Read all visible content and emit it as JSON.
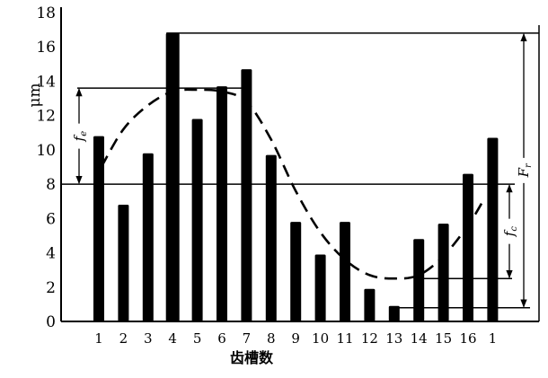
{
  "chart_data": {
    "type": "bar",
    "title": "",
    "xlabel": "齿槽数",
    "ylabel": "μm",
    "ylim": [
      0,
      18
    ],
    "yticks": [
      0,
      2,
      4,
      6,
      8,
      10,
      12,
      14,
      16,
      18
    ],
    "grid": false,
    "categories": [
      "1",
      "2",
      "3",
      "4",
      "5",
      "6",
      "7",
      "8",
      "9",
      "10",
      "11",
      "12",
      "13",
      "14",
      "15",
      "16",
      "1"
    ],
    "values": [
      10.8,
      6.8,
      9.8,
      16.8,
      11.8,
      13.7,
      14.7,
      9.7,
      5.8,
      3.9,
      5.8,
      1.9,
      0.9,
      4.8,
      5.7,
      8.6,
      10.7
    ],
    "curve": {
      "style": "dashed",
      "x": [
        1.1,
        2,
        3,
        4,
        5,
        6,
        7,
        8,
        9,
        10,
        11,
        12,
        13,
        14,
        15,
        16,
        16.6
      ],
      "y": [
        9.0,
        11.2,
        12.6,
        13.4,
        13.5,
        13.4,
        12.8,
        10.6,
        7.6,
        5.2,
        3.6,
        2.7,
        2.5,
        2.7,
        3.8,
        5.6,
        7.0
      ]
    },
    "reference_levels": [
      16.8,
      13.6,
      8.0,
      2.5,
      0.8
    ],
    "annotations": [
      {
        "text": "f",
        "sub": "e",
        "from": 8.0,
        "to": 13.6,
        "side": "left"
      },
      {
        "text": "f",
        "sub": "c",
        "from": 2.5,
        "to": 8.0,
        "side": "right"
      },
      {
        "text": "F",
        "sub": "r",
        "from": 0.8,
        "to": 16.8,
        "side": "right"
      }
    ]
  }
}
